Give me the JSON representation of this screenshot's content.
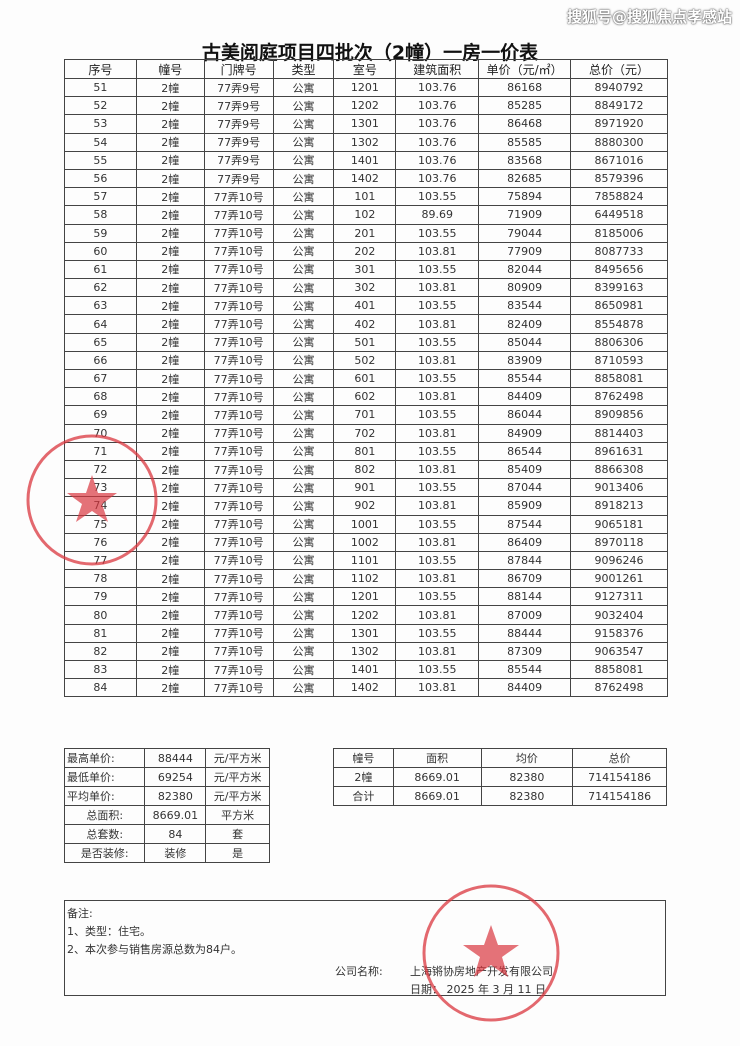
{
  "watermark": "搜狐号@搜狐焦点孝感站",
  "title": "古美阅庭项目四批次（2幢）一房一价表",
  "columns": [
    "序号",
    "幢号",
    "门牌号",
    "类型",
    "室号",
    "建筑面积",
    "单价（元/㎡）",
    "总价（元）"
  ],
  "rows": [
    [
      "51",
      "2幢",
      "77弄9号",
      "公寓",
      "1201",
      "103.76",
      "86168",
      "8940792"
    ],
    [
      "52",
      "2幢",
      "77弄9号",
      "公寓",
      "1202",
      "103.76",
      "85285",
      "8849172"
    ],
    [
      "53",
      "2幢",
      "77弄9号",
      "公寓",
      "1301",
      "103.76",
      "86468",
      "8971920"
    ],
    [
      "54",
      "2幢",
      "77弄9号",
      "公寓",
      "1302",
      "103.76",
      "85585",
      "8880300"
    ],
    [
      "55",
      "2幢",
      "77弄9号",
      "公寓",
      "1401",
      "103.76",
      "83568",
      "8671016"
    ],
    [
      "56",
      "2幢",
      "77弄9号",
      "公寓",
      "1402",
      "103.76",
      "82685",
      "8579396"
    ],
    [
      "57",
      "2幢",
      "77弄10号",
      "公寓",
      "101",
      "103.55",
      "75894",
      "7858824"
    ],
    [
      "58",
      "2幢",
      "77弄10号",
      "公寓",
      "102",
      "89.69",
      "71909",
      "6449518"
    ],
    [
      "59",
      "2幢",
      "77弄10号",
      "公寓",
      "201",
      "103.55",
      "79044",
      "8185006"
    ],
    [
      "60",
      "2幢",
      "77弄10号",
      "公寓",
      "202",
      "103.81",
      "77909",
      "8087733"
    ],
    [
      "61",
      "2幢",
      "77弄10号",
      "公寓",
      "301",
      "103.55",
      "82044",
      "8495656"
    ],
    [
      "62",
      "2幢",
      "77弄10号",
      "公寓",
      "302",
      "103.81",
      "80909",
      "8399163"
    ],
    [
      "63",
      "2幢",
      "77弄10号",
      "公寓",
      "401",
      "103.55",
      "83544",
      "8650981"
    ],
    [
      "64",
      "2幢",
      "77弄10号",
      "公寓",
      "402",
      "103.81",
      "82409",
      "8554878"
    ],
    [
      "65",
      "2幢",
      "77弄10号",
      "公寓",
      "501",
      "103.55",
      "85044",
      "8806306"
    ],
    [
      "66",
      "2幢",
      "77弄10号",
      "公寓",
      "502",
      "103.81",
      "83909",
      "8710593"
    ],
    [
      "67",
      "2幢",
      "77弄10号",
      "公寓",
      "601",
      "103.55",
      "85544",
      "8858081"
    ],
    [
      "68",
      "2幢",
      "77弄10号",
      "公寓",
      "602",
      "103.81",
      "84409",
      "8762498"
    ],
    [
      "69",
      "2幢",
      "77弄10号",
      "公寓",
      "701",
      "103.55",
      "86044",
      "8909856"
    ],
    [
      "70",
      "2幢",
      "77弄10号",
      "公寓",
      "702",
      "103.81",
      "84909",
      "8814403"
    ],
    [
      "71",
      "2幢",
      "77弄10号",
      "公寓",
      "801",
      "103.55",
      "86544",
      "8961631"
    ],
    [
      "72",
      "2幢",
      "77弄10号",
      "公寓",
      "802",
      "103.81",
      "85409",
      "8866308"
    ],
    [
      "73",
      "2幢",
      "77弄10号",
      "公寓",
      "901",
      "103.55",
      "87044",
      "9013406"
    ],
    [
      "74",
      "2幢",
      "77弄10号",
      "公寓",
      "902",
      "103.81",
      "85909",
      "8918213"
    ],
    [
      "75",
      "2幢",
      "77弄10号",
      "公寓",
      "1001",
      "103.55",
      "87544",
      "9065181"
    ],
    [
      "76",
      "2幢",
      "77弄10号",
      "公寓",
      "1002",
      "103.81",
      "86409",
      "8970118"
    ],
    [
      "77",
      "2幢",
      "77弄10号",
      "公寓",
      "1101",
      "103.55",
      "87844",
      "9096246"
    ],
    [
      "78",
      "2幢",
      "77弄10号",
      "公寓",
      "1102",
      "103.81",
      "86709",
      "9001261"
    ],
    [
      "79",
      "2幢",
      "77弄10号",
      "公寓",
      "1201",
      "103.55",
      "88144",
      "9127311"
    ],
    [
      "80",
      "2幢",
      "77弄10号",
      "公寓",
      "1202",
      "103.81",
      "87009",
      "9032404"
    ],
    [
      "81",
      "2幢",
      "77弄10号",
      "公寓",
      "1301",
      "103.55",
      "88444",
      "9158376"
    ],
    [
      "82",
      "2幢",
      "77弄10号",
      "公寓",
      "1302",
      "103.81",
      "87309",
      "9063547"
    ],
    [
      "83",
      "2幢",
      "77弄10号",
      "公寓",
      "1401",
      "103.55",
      "85544",
      "8858081"
    ],
    [
      "84",
      "2幢",
      "77弄10号",
      "公寓",
      "1402",
      "103.81",
      "84409",
      "8762498"
    ]
  ],
  "summary": [
    [
      "最高单价:",
      "88444",
      "元/平方米"
    ],
    [
      "最低单价:",
      "69254",
      "元/平方米"
    ],
    [
      "平均单价:",
      "82380",
      "元/平方米"
    ],
    [
      "总面积:",
      "8669.01",
      "平方米"
    ],
    [
      "总套数:",
      "84",
      "套"
    ],
    [
      "是否装修:",
      "装修",
      "是"
    ]
  ],
  "building_table": {
    "columns": [
      "幢号",
      "面积",
      "均价",
      "总价"
    ],
    "rows": [
      [
        "2幢",
        "8669.01",
        "82380",
        "714154186"
      ],
      [
        "合计",
        "8669.01",
        "82380",
        "714154186"
      ]
    ]
  },
  "notes": {
    "heading": "备注:",
    "items": [
      "1、类型：住宅。",
      "2、本次参与销售房源总数为84户。"
    ],
    "company_label": "公司名称:",
    "company": "上海锵协房地产开发有限公司",
    "date": "日期： 2025 年 3 月 11 日"
  },
  "stamp_color": "#d9363e",
  "stamp_text": "上海锵协房地产开发有限公司"
}
